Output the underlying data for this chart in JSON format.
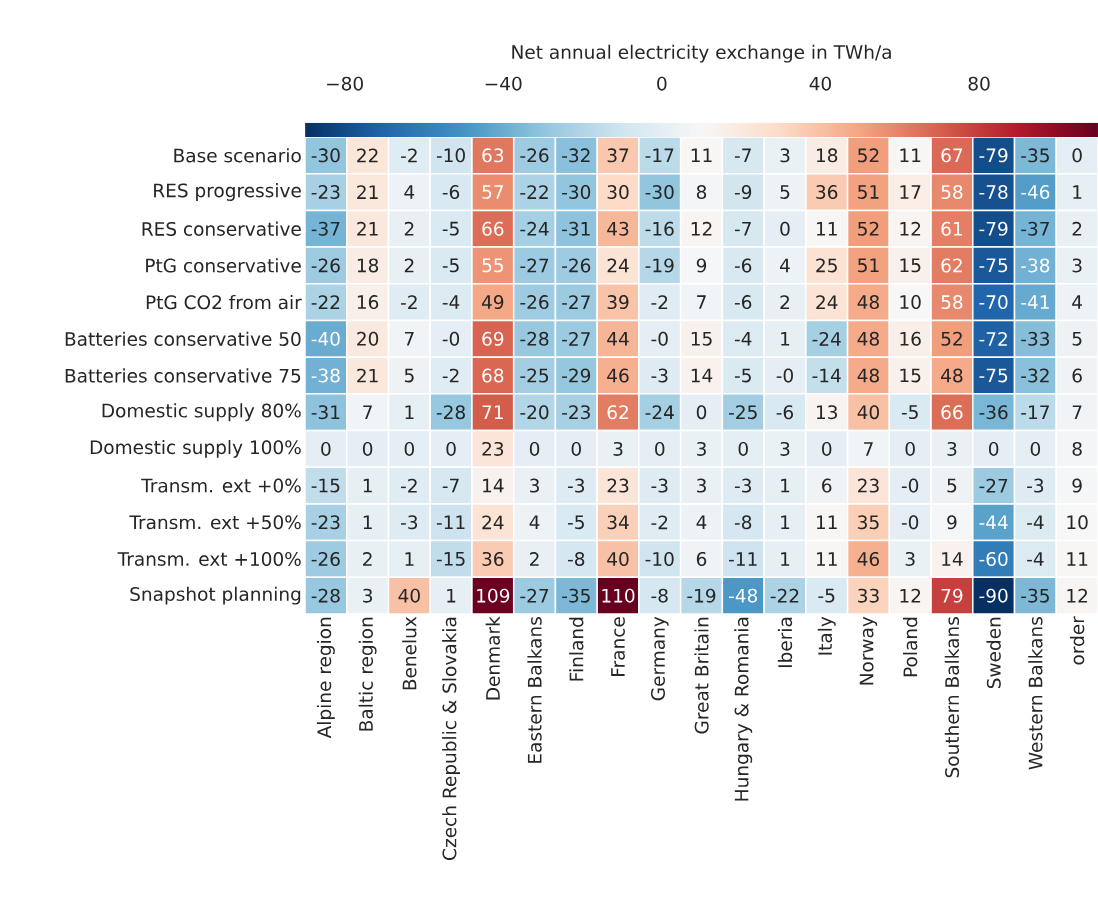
{
  "chart_data": {
    "type": "heatmap",
    "clabel": "Net annual electricity exchange in TWh/a",
    "categories": [
      "Alpine region",
      "Baltic region",
      "Benelux",
      "Czech Republic & Slovakia",
      "Denmark",
      "Eastern Balkans",
      "Finland",
      "France",
      "Germany",
      "Great Britain",
      "Hungary & Romania",
      "Iberia",
      "Italy",
      "Norway",
      "Poland",
      "Southern Balkans",
      "Sweden",
      "Western Balkans",
      "order"
    ],
    "y_categories": [
      "Base scenario",
      "RES progressive",
      "RES conservative",
      "PtG conservative",
      "PtG CO2 from air",
      "Batteries conservative 50",
      "Batteries conservative 75",
      "Domestic supply 80%",
      "Domestic supply 100%",
      "Transm. ext +0%",
      "Transm. ext +50%",
      "Transm. ext +100%",
      "Snapshot planning"
    ],
    "cells": [
      [
        -30,
        22,
        -2,
        -10,
        63,
        -26,
        -32,
        37,
        -17,
        11,
        -7,
        3,
        18,
        52,
        11,
        67,
        -79,
        -35,
        0
      ],
      [
        -23,
        21,
        4,
        -6,
        57,
        -22,
        -30,
        30,
        -30,
        8,
        -9,
        5,
        36,
        51,
        17,
        58,
        -78,
        -46,
        1
      ],
      [
        -37,
        21,
        2,
        -5,
        66,
        -24,
        -31,
        43,
        -16,
        12,
        -7,
        0,
        11,
        52,
        12,
        61,
        -79,
        -37,
        2
      ],
      [
        -26,
        18,
        2,
        -5,
        55,
        -27,
        -26,
        24,
        -19,
        9,
        -6,
        4,
        25,
        51,
        15,
        62,
        -75,
        -38,
        3
      ],
      [
        -22,
        16,
        -2,
        -4,
        49,
        -26,
        -27,
        39,
        -2,
        7,
        -6,
        2,
        24,
        48,
        10,
        58,
        -70,
        -41,
        4
      ],
      [
        -40,
        20,
        7,
        0,
        69,
        -28,
        -27,
        44,
        0,
        15,
        -4,
        1,
        -24,
        48,
        16,
        52,
        -72,
        -33,
        5
      ],
      [
        -38,
        21,
        5,
        -2,
        68,
        -25,
        -29,
        46,
        -3,
        14,
        -5,
        0,
        -14,
        48,
        15,
        48,
        -75,
        -32,
        6
      ],
      [
        -31,
        7,
        1,
        -28,
        71,
        -20,
        -23,
        62,
        -24,
        0,
        -25,
        -6,
        13,
        40,
        -5,
        66,
        -36,
        -17,
        7
      ],
      [
        0,
        0,
        0,
        0,
        23,
        0,
        0,
        3,
        0,
        3,
        0,
        3,
        0,
        7,
        0,
        3,
        0,
        0,
        8
      ],
      [
        -15,
        1,
        -2,
        -7,
        14,
        3,
        -3,
        23,
        -3,
        3,
        -3,
        1,
        6,
        23,
        0,
        5,
        -27,
        -3,
        9
      ],
      [
        -23,
        1,
        -3,
        -11,
        24,
        4,
        -5,
        34,
        -2,
        4,
        -8,
        1,
        11,
        35,
        0,
        9,
        -44,
        -4,
        10
      ],
      [
        -26,
        2,
        1,
        -15,
        36,
        2,
        -8,
        40,
        -10,
        6,
        -11,
        1,
        11,
        46,
        3,
        14,
        -60,
        -4,
        11
      ],
      [
        -28,
        3,
        40,
        1,
        109,
        -27,
        -35,
        110,
        -8,
        -19,
        -48,
        -22,
        -5,
        33,
        12,
        79,
        -90,
        -35,
        12
      ]
    ],
    "cell_labels": [
      [
        "-30",
        "22",
        "-2",
        "-10",
        "63",
        "-26",
        "-32",
        "37",
        "-17",
        "11",
        "-7",
        "3",
        "18",
        "52",
        "11",
        "67",
        "-79",
        "-35",
        "0"
      ],
      [
        "-23",
        "21",
        "4",
        "-6",
        "57",
        "-22",
        "-30",
        "30",
        "-30",
        "8",
        "-9",
        "5",
        "36",
        "51",
        "17",
        "58",
        "-78",
        "-46",
        "1"
      ],
      [
        "-37",
        "21",
        "2",
        "-5",
        "66",
        "-24",
        "-31",
        "43",
        "-16",
        "12",
        "-7",
        "0",
        "11",
        "52",
        "12",
        "61",
        "-79",
        "-37",
        "2"
      ],
      [
        "-26",
        "18",
        "2",
        "-5",
        "55",
        "-27",
        "-26",
        "24",
        "-19",
        "9",
        "-6",
        "4",
        "25",
        "51",
        "15",
        "62",
        "-75",
        "-38",
        "3"
      ],
      [
        "-22",
        "16",
        "-2",
        "-4",
        "49",
        "-26",
        "-27",
        "39",
        "-2",
        "7",
        "-6",
        "2",
        "24",
        "48",
        "10",
        "58",
        "-70",
        "-41",
        "4"
      ],
      [
        "-40",
        "20",
        "7",
        "-0",
        "69",
        "-28",
        "-27",
        "44",
        "-0",
        "15",
        "-4",
        "1",
        "-24",
        "48",
        "16",
        "52",
        "-72",
        "-33",
        "5"
      ],
      [
        "-38",
        "21",
        "5",
        "-2",
        "68",
        "-25",
        "-29",
        "46",
        "-3",
        "14",
        "-5",
        "-0",
        "-14",
        "48",
        "15",
        "48",
        "-75",
        "-32",
        "6"
      ],
      [
        "-31",
        "7",
        "1",
        "-28",
        "71",
        "-20",
        "-23",
        "62",
        "-24",
        "0",
        "-25",
        "-6",
        "13",
        "40",
        "-5",
        "66",
        "-36",
        "-17",
        "7"
      ],
      [
        "0",
        "0",
        "0",
        "0",
        "23",
        "0",
        "0",
        "3",
        "0",
        "3",
        "0",
        "3",
        "0",
        "7",
        "0",
        "3",
        "0",
        "0",
        "8"
      ],
      [
        "-15",
        "1",
        "-2",
        "-7",
        "14",
        "3",
        "-3",
        "23",
        "-3",
        "3",
        "-3",
        "1",
        "6",
        "23",
        "-0",
        "5",
        "-27",
        "-3",
        "9"
      ],
      [
        "-23",
        "1",
        "-3",
        "-11",
        "24",
        "4",
        "-5",
        "34",
        "-2",
        "4",
        "-8",
        "1",
        "11",
        "35",
        "-0",
        "9",
        "-44",
        "-4",
        "10"
      ],
      [
        "-26",
        "2",
        "1",
        "-15",
        "36",
        "2",
        "-8",
        "40",
        "-10",
        "6",
        "-11",
        "1",
        "11",
        "46",
        "3",
        "14",
        "-60",
        "-4",
        "11"
      ],
      [
        "-28",
        "3",
        "40",
        "1",
        "109",
        "-27",
        "-35",
        "110",
        "-8",
        "-19",
        "-48",
        "-22",
        "-5",
        "33",
        "12",
        "79",
        "-90",
        "-35",
        "12"
      ]
    ],
    "clim": [
      -90,
      110
    ],
    "cticks": [
      {
        "value": -80,
        "label": "−80"
      },
      {
        "value": -40,
        "label": "−40"
      },
      0,
      40,
      80
    ]
  }
}
